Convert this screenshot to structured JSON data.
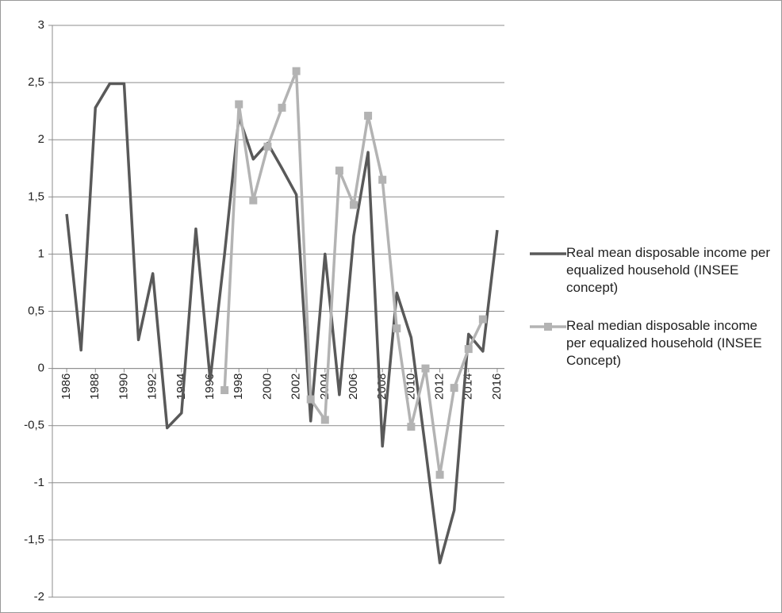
{
  "chart_data": {
    "type": "line",
    "x": [
      1986,
      1987,
      1988,
      1989,
      1990,
      1991,
      1992,
      1993,
      1994,
      1995,
      1996,
      1997,
      1998,
      1999,
      2000,
      2001,
      2002,
      2003,
      2004,
      2005,
      2006,
      2007,
      2008,
      2009,
      2010,
      2011,
      2012,
      2013,
      2014,
      2015,
      2016
    ],
    "xlim": [
      1985,
      2016.5
    ],
    "xticks": [
      1986,
      1988,
      1990,
      1992,
      1994,
      1996,
      1998,
      2000,
      2002,
      2004,
      2006,
      2008,
      2010,
      2012,
      2014,
      2016
    ],
    "ylim": [
      -2,
      3
    ],
    "yticks": [
      -2,
      {
        "value": -1.5,
        "label": "-1,5"
      },
      -1,
      {
        "value": -0.5,
        "label": "-0,5"
      },
      0,
      {
        "value": 0.5,
        "label": "0,5"
      },
      1,
      {
        "value": 1.5,
        "label": "1,5"
      },
      2,
      {
        "value": 2.5,
        "label": "2,5"
      },
      3
    ],
    "grid": true,
    "legend": "right",
    "series": [
      {
        "name": "Real mean disposable income per equalized household (INSEE concept)",
        "color": "#595959",
        "marker": "none",
        "values": [
          1.35,
          0.16,
          2.28,
          2.49,
          2.49,
          0.25,
          0.83,
          -0.52,
          -0.39,
          1.22,
          -0.1,
          1.0,
          2.2,
          1.83,
          1.97,
          1.75,
          1.52,
          -0.46,
          1.0,
          -0.23,
          1.16,
          1.89,
          -0.68,
          0.66,
          0.27,
          -0.7,
          -1.7,
          -1.24,
          0.3,
          0.15,
          1.21
        ]
      },
      {
        "name": "Real median disposable income per equalized household (INSEE Concept)",
        "color": "#b3b3b3",
        "marker": "square",
        "values": [
          null,
          null,
          null,
          null,
          null,
          null,
          null,
          null,
          null,
          null,
          null,
          -0.19,
          2.31,
          1.47,
          1.94,
          2.28,
          2.6,
          -0.27,
          -0.45,
          1.73,
          1.43,
          2.21,
          1.65,
          0.35,
          -0.51,
          0.0,
          -0.93,
          -0.17,
          0.17,
          0.43,
          null
        ]
      }
    ]
  }
}
